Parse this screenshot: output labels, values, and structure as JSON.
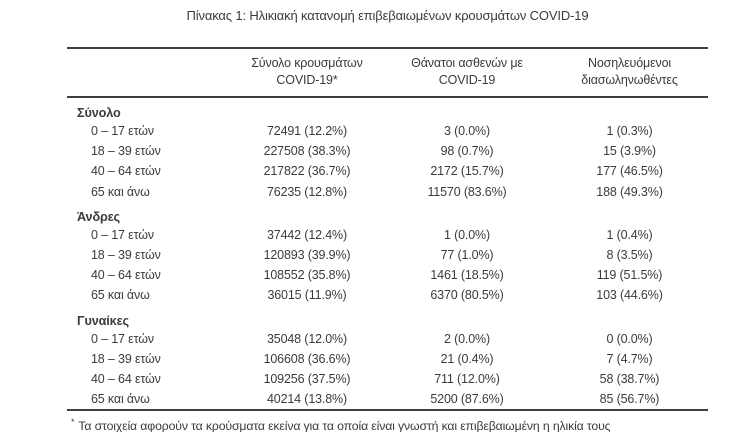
{
  "title": "Πίνακας 1: Ηλικιακή κατανομή επιβεβαιωμένων κρουσμάτων COVID-19",
  "colors": {
    "text": "#3b3b3b",
    "border": "#3f3f3f",
    "background": "#ffffff"
  },
  "table": {
    "columns": [
      {
        "line1": "",
        "line2": ""
      },
      {
        "line1": "Σύνολο κρουσμάτων",
        "line2": "COVID-19*"
      },
      {
        "line1": "Θάνατοι ασθενών με",
        "line2": "COVID-19"
      },
      {
        "line1": "Νοσηλευόμενοι",
        "line2": "διασωληνωθέντες"
      }
    ],
    "sections": [
      {
        "name": "Σύνολο",
        "rows": [
          {
            "label": "0 – 17 ετών",
            "cases": "72491 (12.2%)",
            "deaths": "3 (0.0%)",
            "intubated": "1 (0.3%)"
          },
          {
            "label": "18 – 39 ετών",
            "cases": "227508 (38.3%)",
            "deaths": "98 (0.7%)",
            "intubated": "15 (3.9%)"
          },
          {
            "label": "40 – 64 ετών",
            "cases": "217822 (36.7%)",
            "deaths": "2172 (15.7%)",
            "intubated": "177 (46.5%)"
          },
          {
            "label": "65 και άνω",
            "cases": "76235 (12.8%)",
            "deaths": "11570 (83.6%)",
            "intubated": "188 (49.3%)"
          }
        ]
      },
      {
        "name": "Άνδρες",
        "rows": [
          {
            "label": "0 – 17 ετών",
            "cases": "37442 (12.4%)",
            "deaths": "1 (0.0%)",
            "intubated": "1 (0.4%)"
          },
          {
            "label": "18 – 39 ετών",
            "cases": "120893 (39.9%)",
            "deaths": "77 (1.0%)",
            "intubated": "8 (3.5%)"
          },
          {
            "label": "40 – 64 ετών",
            "cases": "108552 (35.8%)",
            "deaths": "1461 (18.5%)",
            "intubated": "119 (51.5%)"
          },
          {
            "label": "65 και άνω",
            "cases": "36015 (11.9%)",
            "deaths": "6370 (80.5%)",
            "intubated": "103 (44.6%)"
          }
        ]
      },
      {
        "name": "Γυναίκες",
        "rows": [
          {
            "label": "0 – 17 ετών",
            "cases": "35048 (12.0%)",
            "deaths": "2 (0.0%)",
            "intubated": "0 (0.0%)"
          },
          {
            "label": "18 – 39 ετών",
            "cases": "106608 (36.6%)",
            "deaths": "21 (0.4%)",
            "intubated": "7 (4.7%)"
          },
          {
            "label": "40 – 64 ετών",
            "cases": "109256 (37.5%)",
            "deaths": "711 (12.0%)",
            "intubated": "58 (38.7%)"
          },
          {
            "label": "65 και άνω",
            "cases": "40214 (13.8%)",
            "deaths": "5200 (87.6%)",
            "intubated": "85 (56.7%)"
          }
        ]
      }
    ],
    "footnote_marker": "*",
    "footnote": "Τα στοιχεία αφορούν τα κρούσματα εκείνα για τα οποία είναι γνωστή και επιβεβαιωμένη η ηλικία τους"
  }
}
